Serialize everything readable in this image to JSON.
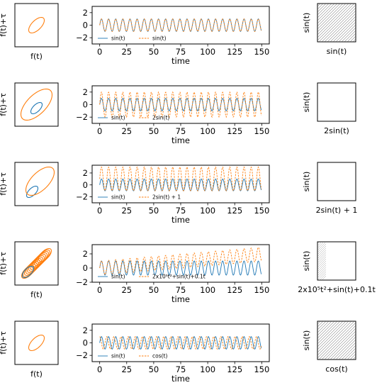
{
  "chart_data": [
    {
      "row": 1,
      "phase_plot": {
        "type": "line",
        "xlabel": "f(t)",
        "ylabel": "f(t)+τ"
      },
      "time_series": {
        "type": "line",
        "xlabel": "time",
        "x_ticks": [
          0,
          25,
          50,
          75,
          100,
          125,
          150
        ],
        "y_ticks": [
          2,
          0,
          -2
        ],
        "xlim": [
          0,
          150
        ],
        "ylim": [
          -3,
          3
        ],
        "series": [
          {
            "name": "sin(t)",
            "color": "#1f77b4",
            "style": "solid",
            "formula": "sin"
          },
          {
            "name": "sin(t)",
            "color": "#ff7f0e",
            "style": "dashed",
            "formula": "sin"
          }
        ]
      },
      "recurrence_plot": {
        "type": "heatmap",
        "xlabel": "sin(t)",
        "ylabel": "sin(t)",
        "pattern": "diagonal-full"
      }
    },
    {
      "row": 2,
      "phase_plot": {
        "type": "line",
        "xlabel": "",
        "ylabel": "f(t)+τ"
      },
      "time_series": {
        "type": "line",
        "xlabel": "time",
        "x_ticks": [
          0,
          25,
          50,
          75,
          100,
          125,
          150
        ],
        "y_ticks": [
          2,
          0,
          -2
        ],
        "xlim": [
          0,
          150
        ],
        "ylim": [
          -3,
          3
        ],
        "series": [
          {
            "name": "sin(t)",
            "color": "#1f77b4",
            "style": "solid",
            "formula": "sin"
          },
          {
            "name": "2sin(t)",
            "color": "#ff7f0e",
            "style": "dashed",
            "formula": "2sin"
          }
        ]
      },
      "recurrence_plot": {
        "type": "heatmap",
        "xlabel": "2sin(t)",
        "ylabel": "sin(t)",
        "pattern": "empty"
      }
    },
    {
      "row": 3,
      "phase_plot": {
        "type": "line",
        "xlabel": "",
        "ylabel": "f(t)+τ"
      },
      "time_series": {
        "type": "line",
        "xlabel": "time",
        "x_ticks": [
          0,
          25,
          50,
          75,
          100,
          125,
          150
        ],
        "y_ticks": [
          2,
          0,
          -2
        ],
        "xlim": [
          0,
          150
        ],
        "ylim": [
          -3,
          3.3
        ],
        "series": [
          {
            "name": "sin(t)",
            "color": "#1f77b4",
            "style": "solid",
            "formula": "sin"
          },
          {
            "name": "2sin(t) + 1",
            "color": "#ff7f0e",
            "style": "dashed",
            "formula": "2sin+1"
          }
        ]
      },
      "recurrence_plot": {
        "type": "heatmap",
        "xlabel": "2sin(t) + 1",
        "ylabel": "sin(t)",
        "pattern": "empty"
      }
    },
    {
      "row": 4,
      "phase_plot": {
        "type": "line",
        "xlabel": "f(t)",
        "ylabel": "f(t)+τ"
      },
      "time_series": {
        "type": "line",
        "xlabel": "time",
        "x_ticks": [
          0,
          25,
          50,
          75,
          100,
          125,
          150
        ],
        "y_ticks": [
          2,
          0,
          -2
        ],
        "xlim": [
          0,
          150
        ],
        "ylim": [
          -2,
          3.3
        ],
        "series": [
          {
            "name": "sin(t)",
            "color": "#1f77b4",
            "style": "solid",
            "formula": "sin"
          },
          {
            "name": "2x10⁵t²+sin(t)+0.1t",
            "color": "#ff7f0e",
            "style": "dashed",
            "formula": "trend"
          }
        ]
      },
      "recurrence_plot": {
        "type": "heatmap",
        "xlabel": "2x10⁵t²+sin(t)+0.1t",
        "ylabel": "sin(t)",
        "pattern": "left-edge"
      }
    },
    {
      "row": 5,
      "phase_plot": {
        "type": "line",
        "xlabel": "f(t)",
        "ylabel": "f(t)+τ"
      },
      "time_series": {
        "type": "line",
        "xlabel": "time",
        "x_ticks": [
          0,
          25,
          50,
          75,
          100,
          125,
          150
        ],
        "y_ticks": [
          2,
          0,
          -2
        ],
        "xlim": [
          0,
          150
        ],
        "ylim": [
          -3,
          3
        ],
        "series": [
          {
            "name": "sin(t)",
            "color": "#1f77b4",
            "style": "solid",
            "formula": "sin"
          },
          {
            "name": "cos(t)",
            "color": "#ff7f0e",
            "style": "dashed",
            "formula": "cos"
          }
        ]
      },
      "recurrence_plot": {
        "type": "heatmap",
        "xlabel": "cos(t)",
        "ylabel": "sin(t)",
        "pattern": "diagonal-full"
      }
    }
  ]
}
